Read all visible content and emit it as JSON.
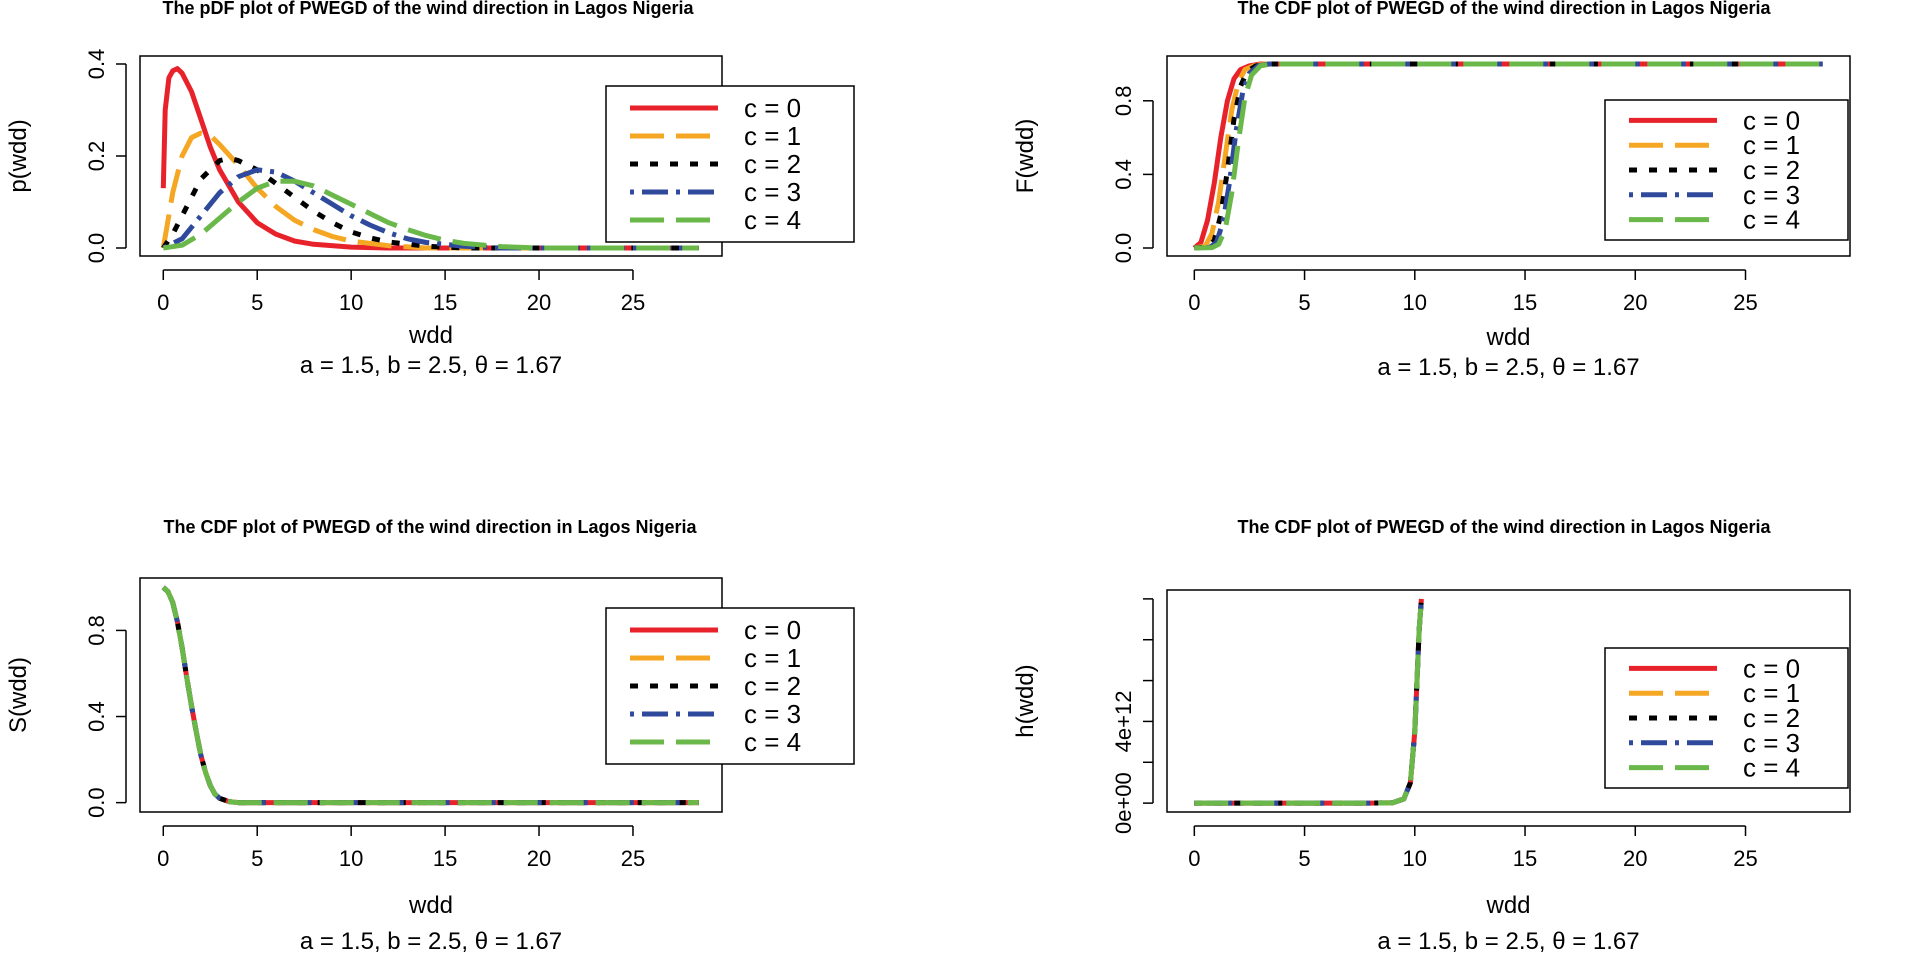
{
  "chart_data": [
    {
      "type": "line",
      "title": "The pDF plot of PWEGD of the wind direction in Lagos Nigeria",
      "xlabel": "wdd",
      "sublabel": "a = 1.5, b = 2.5, θ = 1.67",
      "ylabel": "p(wdd)",
      "xlim": [
        0,
        28.5
      ],
      "ylim": [
        0,
        0.4
      ],
      "xticks": [
        "0",
        "5",
        "10",
        "15",
        "20",
        "25"
      ],
      "xtick_values": [
        0,
        5,
        10,
        15,
        20,
        25
      ],
      "yticks": [
        "0.0",
        "0.2",
        "0.4"
      ],
      "ytick_values": [
        0,
        0.2,
        0.4
      ],
      "legend_position": "top-right",
      "series": [
        {
          "name": "c = 0",
          "color": "#e8222a",
          "dash": "solid",
          "x": [
            0,
            0.1,
            0.3,
            0.5,
            0.75,
            1,
            1.5,
            2,
            2.5,
            3,
            4,
            5,
            6,
            7,
            8,
            10,
            12,
            15,
            20,
            28.5
          ],
          "y": [
            0.13,
            0.3,
            0.37,
            0.385,
            0.39,
            0.38,
            0.34,
            0.28,
            0.22,
            0.17,
            0.1,
            0.055,
            0.03,
            0.015,
            0.008,
            0.002,
            0,
            0,
            0,
            0
          ]
        },
        {
          "name": "c = 1",
          "color": "#f5a623",
          "dash": "long",
          "x": [
            0,
            0.5,
            1,
            1.5,
            2,
            2.5,
            3,
            4,
            5,
            6,
            7,
            8,
            9,
            10,
            12,
            14,
            20,
            28.5
          ],
          "y": [
            0,
            0.12,
            0.2,
            0.24,
            0.25,
            0.245,
            0.225,
            0.18,
            0.13,
            0.09,
            0.06,
            0.04,
            0.025,
            0.015,
            0.005,
            0,
            0,
            0
          ]
        },
        {
          "name": "c = 2",
          "color": "#000000",
          "dash": "dotted",
          "x": [
            0,
            0.5,
            1,
            2,
            3,
            3.5,
            4,
            5,
            6,
            7,
            8,
            9,
            10,
            11,
            12,
            14,
            16,
            20,
            28.5
          ],
          "y": [
            0,
            0.03,
            0.07,
            0.15,
            0.19,
            0.195,
            0.19,
            0.17,
            0.14,
            0.11,
            0.08,
            0.055,
            0.035,
            0.022,
            0.013,
            0.004,
            0,
            0,
            0
          ]
        },
        {
          "name": "c = 3",
          "color": "#2f4a9c",
          "dash": "dashdot",
          "x": [
            0,
            1,
            2,
            3,
            4,
            5,
            6,
            7,
            8,
            9,
            10,
            11,
            12,
            13,
            14,
            16,
            18,
            28.5
          ],
          "y": [
            0,
            0.02,
            0.07,
            0.12,
            0.155,
            0.17,
            0.165,
            0.145,
            0.12,
            0.095,
            0.07,
            0.05,
            0.033,
            0.02,
            0.012,
            0.004,
            0,
            0
          ]
        },
        {
          "name": "c = 4",
          "color": "#6ab84a",
          "dash": "long",
          "x": [
            0,
            1,
            2,
            3,
            4,
            5,
            6,
            7,
            8,
            9,
            10,
            11,
            12,
            13,
            14,
            15,
            16,
            18,
            20,
            28.5
          ],
          "y": [
            0,
            0.006,
            0.03,
            0.065,
            0.1,
            0.13,
            0.145,
            0.145,
            0.135,
            0.115,
            0.095,
            0.075,
            0.055,
            0.04,
            0.027,
            0.017,
            0.01,
            0.003,
            0,
            0
          ]
        }
      ]
    },
    {
      "type": "line",
      "title": "The CDF plot of PWEGD of the wind direction in Lagos Nigeria",
      "xlabel": "wdd",
      "sublabel": "a = 1.5, b = 2.5, θ = 1.67",
      "ylabel": "F(wdd)",
      "xlim": [
        0,
        28.5
      ],
      "ylim": [
        0,
        1
      ],
      "xticks": [
        "0",
        "5",
        "10",
        "15",
        "20",
        "25"
      ],
      "xtick_values": [
        0,
        5,
        10,
        15,
        20,
        25
      ],
      "yticks": [
        "0.0",
        "0.4",
        "0.8"
      ],
      "ytick_values": [
        0,
        0.4,
        0.8
      ],
      "legend_position": "top-right",
      "series": [
        {
          "name": "c = 0",
          "color": "#e8222a",
          "dash": "solid",
          "x": [
            0,
            0.3,
            0.6,
            0.9,
            1.2,
            1.5,
            1.8,
            2.1,
            2.5,
            3,
            28.5
          ],
          "y": [
            0,
            0.03,
            0.15,
            0.35,
            0.6,
            0.8,
            0.92,
            0.97,
            0.99,
            1,
            1
          ]
        },
        {
          "name": "c = 1",
          "color": "#f5a623",
          "dash": "long",
          "x": [
            0,
            0.5,
            0.8,
            1.1,
            1.4,
            1.7,
            2,
            2.3,
            2.7,
            3.2,
            28.5
          ],
          "y": [
            0,
            0.01,
            0.08,
            0.25,
            0.5,
            0.75,
            0.9,
            0.97,
            0.99,
            1,
            1
          ]
        },
        {
          "name": "c = 2",
          "color": "#000000",
          "dash": "dotted",
          "x": [
            0,
            0.6,
            0.9,
            1.2,
            1.5,
            1.8,
            2.1,
            2.4,
            2.8,
            3.3,
            28.5
          ],
          "y": [
            0,
            0.005,
            0.04,
            0.18,
            0.42,
            0.7,
            0.88,
            0.96,
            0.99,
            1,
            1
          ]
        },
        {
          "name": "c = 3",
          "color": "#2f4a9c",
          "dash": "dashdot",
          "x": [
            0,
            0.7,
            1,
            1.3,
            1.6,
            1.9,
            2.2,
            2.5,
            2.9,
            3.4,
            28.5
          ],
          "y": [
            0,
            0.003,
            0.03,
            0.14,
            0.36,
            0.64,
            0.85,
            0.95,
            0.99,
            1,
            1
          ]
        },
        {
          "name": "c = 4",
          "color": "#6ab84a",
          "dash": "long",
          "x": [
            0,
            0.8,
            1.1,
            1.4,
            1.7,
            2,
            2.3,
            2.6,
            3,
            3.5,
            28.5
          ],
          "y": [
            0,
            0.002,
            0.02,
            0.1,
            0.3,
            0.58,
            0.82,
            0.94,
            0.99,
            1,
            1
          ]
        }
      ]
    },
    {
      "type": "line",
      "title": "The CDF plot of PWEGD of the wind direction in Lagos Nigeria",
      "xlabel": "wdd",
      "sublabel": "a = 1.5, b = 2.5, θ = 1.67",
      "ylabel": "S(wdd)",
      "xlim": [
        0,
        28.5
      ],
      "ylim": [
        0,
        1
      ],
      "xticks": [
        "0",
        "5",
        "10",
        "15",
        "20",
        "25"
      ],
      "xtick_values": [
        0,
        5,
        10,
        15,
        20,
        25
      ],
      "yticks": [
        "0.0",
        "0.4",
        "0.8"
      ],
      "ytick_values": [
        0,
        0.4,
        0.8
      ],
      "legend_position": "top-right",
      "series": [
        {
          "name": "c = 0",
          "color": "#e8222a",
          "dash": "solid",
          "x": [
            0,
            0.25,
            0.5,
            0.75,
            1,
            1.25,
            1.5,
            1.75,
            2,
            2.25,
            2.5,
            2.75,
            3,
            3.5,
            4,
            28.5
          ],
          "y": [
            1,
            0.98,
            0.93,
            0.84,
            0.72,
            0.58,
            0.45,
            0.33,
            0.22,
            0.14,
            0.08,
            0.04,
            0.02,
            0.005,
            0,
            0
          ]
        },
        {
          "name": "c = 1",
          "color": "#f5a623",
          "dash": "long",
          "x": [
            0,
            0.25,
            0.5,
            0.75,
            1,
            1.25,
            1.5,
            1.75,
            2,
            2.25,
            2.5,
            2.75,
            3,
            3.5,
            4,
            28.5
          ],
          "y": [
            1,
            0.98,
            0.93,
            0.84,
            0.72,
            0.58,
            0.45,
            0.33,
            0.22,
            0.14,
            0.08,
            0.04,
            0.02,
            0.005,
            0,
            0
          ]
        },
        {
          "name": "c = 2",
          "color": "#000000",
          "dash": "dotted",
          "x": [
            0,
            0.25,
            0.5,
            0.75,
            1,
            1.25,
            1.5,
            1.75,
            2,
            2.25,
            2.5,
            2.75,
            3,
            3.5,
            4,
            28.5
          ],
          "y": [
            1,
            0.98,
            0.93,
            0.84,
            0.72,
            0.58,
            0.45,
            0.33,
            0.22,
            0.14,
            0.08,
            0.04,
            0.02,
            0.005,
            0,
            0
          ]
        },
        {
          "name": "c = 3",
          "color": "#2f4a9c",
          "dash": "dashdot",
          "x": [
            0,
            0.25,
            0.5,
            0.75,
            1,
            1.25,
            1.5,
            1.75,
            2,
            2.25,
            2.5,
            2.75,
            3,
            3.5,
            4,
            28.5
          ],
          "y": [
            1,
            0.98,
            0.93,
            0.84,
            0.72,
            0.58,
            0.45,
            0.33,
            0.22,
            0.14,
            0.08,
            0.04,
            0.02,
            0.005,
            0,
            0
          ]
        },
        {
          "name": "c = 4",
          "color": "#6ab84a",
          "dash": "long",
          "x": [
            0,
            0.25,
            0.5,
            0.75,
            1,
            1.25,
            1.5,
            1.75,
            2,
            2.25,
            2.5,
            2.75,
            3,
            3.5,
            4,
            28.5
          ],
          "y": [
            1,
            0.98,
            0.93,
            0.84,
            0.72,
            0.58,
            0.45,
            0.33,
            0.22,
            0.14,
            0.08,
            0.04,
            0.02,
            0.005,
            0,
            0
          ]
        }
      ]
    },
    {
      "type": "line",
      "title": "The CDF plot of PWEGD of the wind direction in Lagos Nigeria",
      "xlabel": "wdd",
      "sublabel": "a = 1.5, b = 2.5, θ = 1.67",
      "ylabel": "h(wdd)",
      "xlim": [
        0,
        28.5
      ],
      "ylim": [
        0,
        10000000000000.0
      ],
      "xticks": [
        "0",
        "5",
        "10",
        "15",
        "20",
        "25"
      ],
      "xtick_values": [
        0,
        5,
        10,
        15,
        20,
        25
      ],
      "yticks": [
        "0e+00",
        "4e+12"
      ],
      "ytick_values": [
        0,
        4000000000000.0
      ],
      "ytick_minor_values": [
        2000000000000.0,
        6000000000000.0,
        8000000000000.0,
        10000000000000.0
      ],
      "legend_position": "center-right",
      "series": [
        {
          "name": "c = 0",
          "color": "#e8222a",
          "dash": "solid",
          "x": [
            0,
            2,
            4,
            6,
            8,
            9,
            9.5,
            9.8,
            10,
            10.1,
            10.2,
            10.3
          ],
          "y": [
            0,
            0,
            0,
            0,
            0,
            20000000000.0,
            200000000000.0,
            1000000000000.0,
            3500000000000.0,
            6000000000000.0,
            8500000000000.0,
            10000000000000.0
          ]
        },
        {
          "name": "c = 1",
          "color": "#f5a623",
          "dash": "long",
          "x": [
            0,
            2,
            4,
            6,
            8,
            9,
            9.5,
            9.8,
            10,
            10.1,
            10.2,
            10.3
          ],
          "y": [
            0,
            0,
            0,
            0,
            0,
            20000000000.0,
            200000000000.0,
            1000000000000.0,
            3500000000000.0,
            6000000000000.0,
            8500000000000.0,
            10000000000000.0
          ]
        },
        {
          "name": "c = 2",
          "color": "#000000",
          "dash": "dotted",
          "x": [
            0,
            2,
            4,
            6,
            8,
            9,
            9.5,
            9.8,
            10,
            10.1,
            10.2,
            10.3
          ],
          "y": [
            0,
            0,
            0,
            0,
            0,
            20000000000.0,
            200000000000.0,
            1000000000000.0,
            3500000000000.0,
            6000000000000.0,
            8500000000000.0,
            10000000000000.0
          ]
        },
        {
          "name": "c = 3",
          "color": "#2f4a9c",
          "dash": "dashdot",
          "x": [
            0,
            2,
            4,
            6,
            8,
            9,
            9.5,
            9.8,
            10,
            10.1,
            10.2,
            10.3
          ],
          "y": [
            0,
            0,
            0,
            0,
            0,
            20000000000.0,
            200000000000.0,
            1000000000000.0,
            3500000000000.0,
            6000000000000.0,
            8500000000000.0,
            10000000000000.0
          ]
        },
        {
          "name": "c = 4",
          "color": "#6ab84a",
          "dash": "long",
          "x": [
            0,
            2,
            4,
            6,
            8,
            9,
            9.5,
            9.8,
            10,
            10.1,
            10.2,
            10.3
          ],
          "y": [
            0,
            0,
            0,
            0,
            0,
            20000000000.0,
            200000000000.0,
            1000000000000.0,
            3500000000000.0,
            6000000000000.0,
            8500000000000.0,
            10000000000000.0
          ]
        }
      ]
    }
  ]
}
